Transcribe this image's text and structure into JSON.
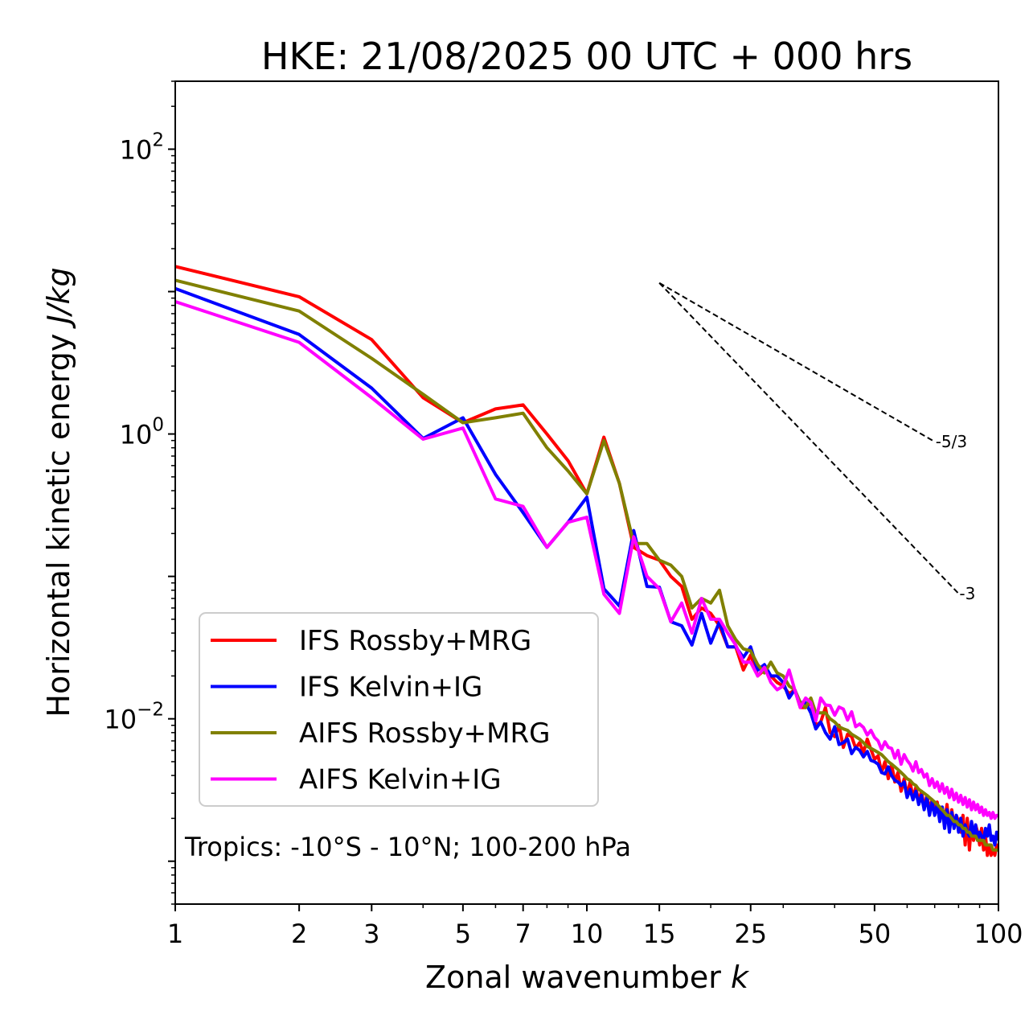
{
  "chart_data": {
    "type": "line",
    "title": "HKE: 21/08/2025 00 UTC + 000 hrs",
    "xlabel": "Zonal wavenumber",
    "xlabel_symbol": "k",
    "ylabel": "Horizontal kinetic energy",
    "ylabel_units": "J/kg",
    "xscale": "log",
    "yscale": "log",
    "xlim": [
      1,
      100
    ],
    "ylim": [
      0.0005,
      300
    ],
    "x_ticks": [
      1,
      2,
      3,
      5,
      7,
      10,
      15,
      25,
      50,
      100
    ],
    "x_tick_labels": [
      "1",
      "2",
      "3",
      "5",
      "7",
      "10",
      "15",
      "25",
      "50",
      "100"
    ],
    "y_ticks": [
      100,
      1,
      0.01
    ],
    "y_tick_labels": [
      {
        "base": "10",
        "exp": "2"
      },
      {
        "base": "10",
        "exp": "0"
      },
      {
        "base": "10",
        "exp": "−2"
      }
    ],
    "annotation": "Tropics: -10°S - 10°N; 100-200 hPa",
    "legend_position": "lower-left",
    "reference_slopes": [
      {
        "label": "-5/3",
        "slope": -1.6667,
        "x_start": 15,
        "y_start": 11.5,
        "x_end": 70
      },
      {
        "label": "-3",
        "slope": -3,
        "x_start": 15,
        "y_start": 11.5,
        "x_end": 80
      }
    ],
    "x": [
      1,
      2,
      3,
      4,
      5,
      6,
      7,
      8,
      9,
      10,
      11,
      12,
      13,
      14,
      15,
      16,
      17,
      18,
      19,
      20,
      21,
      22,
      23,
      24,
      25,
      26,
      27,
      28,
      29,
      30,
      31,
      32,
      33,
      34,
      35,
      36,
      37,
      38,
      39,
      40,
      41,
      42,
      43,
      44,
      45,
      46,
      47,
      48,
      49,
      50,
      51,
      52,
      53,
      54,
      55,
      56,
      57,
      58,
      59,
      60,
      61,
      62,
      63,
      64,
      65,
      66,
      67,
      68,
      69,
      70,
      71,
      72,
      73,
      74,
      75,
      76,
      77,
      78,
      79,
      80,
      81,
      82,
      83,
      84,
      85,
      86,
      87,
      88,
      89,
      90,
      91,
      92,
      93,
      94,
      95,
      96,
      97,
      98,
      99,
      100
    ],
    "series": [
      {
        "name": "IFS Rossby+MRG",
        "color": "#ff0000",
        "values": [
          15,
          9.2,
          4.6,
          1.8,
          1.2,
          1.5,
          1.6,
          1.0,
          0.65,
          0.38,
          0.95,
          0.45,
          0.16,
          0.14,
          0.13,
          0.1,
          0.085,
          0.05,
          0.06,
          0.055,
          0.045,
          0.032,
          0.032,
          0.022,
          0.028,
          0.02,
          0.022,
          0.02,
          0.018,
          0.017,
          0.015,
          0.016,
          0.012,
          0.012,
          0.013,
          0.009,
          0.0095,
          0.012,
          0.008,
          0.0075,
          0.009,
          0.0063,
          0.0078,
          0.0075,
          0.0062,
          0.0068,
          0.0058,
          0.0072,
          0.0061,
          0.0052,
          0.0055,
          0.0042,
          0.005,
          0.0038,
          0.0048,
          0.0036,
          0.0042,
          0.0031,
          0.0038,
          0.0029,
          0.0036,
          0.0028,
          0.0033,
          0.0026,
          0.0031,
          0.0024,
          0.0029,
          0.0023,
          0.0027,
          0.0024,
          0.0026,
          0.002,
          0.0024,
          0.0019,
          0.0025,
          0.0017,
          0.0023,
          0.0018,
          0.0021,
          0.0019,
          0.0016,
          0.0021,
          0.0013,
          0.002,
          0.0012,
          0.0019,
          0.0014,
          0.0018,
          0.0016,
          0.0013,
          0.0017,
          0.0012,
          0.0015,
          0.0011,
          0.0013,
          0.0011,
          0.0012,
          0.0011,
          0.0013,
          0.0012
        ]
      },
      {
        "name": "IFS Kelvin+IG",
        "color": "#0000ff",
        "values": [
          10.5,
          5.0,
          2.1,
          0.93,
          1.3,
          0.52,
          0.28,
          0.16,
          0.24,
          0.36,
          0.082,
          0.062,
          0.21,
          0.085,
          0.084,
          0.048,
          0.045,
          0.033,
          0.055,
          0.034,
          0.048,
          0.032,
          0.032,
          0.027,
          0.032,
          0.022,
          0.024,
          0.02,
          0.02,
          0.018,
          0.014,
          0.016,
          0.013,
          0.013,
          0.011,
          0.0085,
          0.0095,
          0.008,
          0.0072,
          0.0088,
          0.0066,
          0.0068,
          0.0072,
          0.0057,
          0.0063,
          0.006,
          0.0054,
          0.0059,
          0.0051,
          0.005,
          0.0048,
          0.0042,
          0.0041,
          0.0046,
          0.004,
          0.0037,
          0.0036,
          0.0034,
          0.0036,
          0.0028,
          0.0032,
          0.0027,
          0.0031,
          0.0025,
          0.0029,
          0.0023,
          0.0028,
          0.0021,
          0.0026,
          0.0021,
          0.0025,
          0.0019,
          0.0024,
          0.0017,
          0.0023,
          0.0016,
          0.0022,
          0.0017,
          0.0021,
          0.0016,
          0.002,
          0.0015,
          0.0018,
          0.0016,
          0.0015,
          0.0019,
          0.0015,
          0.0018,
          0.0014,
          0.0016,
          0.0015,
          0.0014,
          0.0017,
          0.0015,
          0.0018,
          0.0014,
          0.0015,
          0.0013,
          0.0016,
          0.0014
        ]
      },
      {
        "name": "AIFS Rossby+MRG",
        "color": "#808000",
        "values": [
          12,
          7.3,
          3.4,
          1.9,
          1.2,
          1.3,
          1.4,
          0.8,
          0.55,
          0.38,
          0.9,
          0.45,
          0.17,
          0.17,
          0.13,
          0.12,
          0.1,
          0.06,
          0.07,
          0.065,
          0.08,
          0.045,
          0.036,
          0.031,
          0.03,
          0.024,
          0.021,
          0.025,
          0.021,
          0.02,
          0.017,
          0.016,
          0.013,
          0.012,
          0.014,
          0.011,
          0.011,
          0.011,
          0.01,
          0.0095,
          0.0088,
          0.0085,
          0.0083,
          0.0078,
          0.0075,
          0.0072,
          0.0068,
          0.0064,
          0.0062,
          0.006,
          0.0058,
          0.0056,
          0.0053,
          0.005,
          0.0048,
          0.0046,
          0.0044,
          0.0042,
          0.004,
          0.0038,
          0.0037,
          0.0035,
          0.0034,
          0.0032,
          0.0031,
          0.003,
          0.0029,
          0.0028,
          0.0027,
          0.0026,
          0.0025,
          0.0024,
          0.0023,
          0.0022,
          0.0021,
          0.0021,
          0.002,
          0.0019,
          0.0019,
          0.0018,
          0.0018,
          0.0017,
          0.0017,
          0.0016,
          0.0016,
          0.0015,
          0.0015,
          0.0015,
          0.0014,
          0.0014,
          0.0014,
          0.0014,
          0.0013,
          0.0013,
          0.0013,
          0.0013,
          0.0012,
          0.0012,
          0.0012,
          0.0012
        ]
      },
      {
        "name": "AIFS Kelvin+IG",
        "color": "#ff00ff",
        "values": [
          8.5,
          4.4,
          1.8,
          0.92,
          1.1,
          0.35,
          0.31,
          0.16,
          0.24,
          0.26,
          0.075,
          0.055,
          0.19,
          0.1,
          0.082,
          0.048,
          0.065,
          0.04,
          0.07,
          0.05,
          0.05,
          0.04,
          0.033,
          0.025,
          0.025,
          0.02,
          0.023,
          0.018,
          0.016,
          0.017,
          0.022,
          0.016,
          0.012,
          0.014,
          0.013,
          0.0097,
          0.014,
          0.0125,
          0.0124,
          0.0106,
          0.0121,
          0.0117,
          0.0098,
          0.0112,
          0.0088,
          0.0092,
          0.0087,
          0.0077,
          0.0083,
          0.0074,
          0.007,
          0.0061,
          0.0069,
          0.0063,
          0.0062,
          0.0053,
          0.006,
          0.0048,
          0.0056,
          0.0051,
          0.0048,
          0.0043,
          0.005,
          0.0042,
          0.0044,
          0.0039,
          0.0041,
          0.0034,
          0.0038,
          0.0033,
          0.0036,
          0.0031,
          0.0035,
          0.003,
          0.0033,
          0.0028,
          0.0032,
          0.0027,
          0.003,
          0.0026,
          0.0029,
          0.0025,
          0.0028,
          0.0024,
          0.0027,
          0.0023,
          0.0026,
          0.0023,
          0.0025,
          0.0022,
          0.0024,
          0.0021,
          0.0023,
          0.0021,
          0.0022,
          0.002,
          0.0022,
          0.002,
          0.0021,
          0.0021
        ]
      }
    ]
  }
}
